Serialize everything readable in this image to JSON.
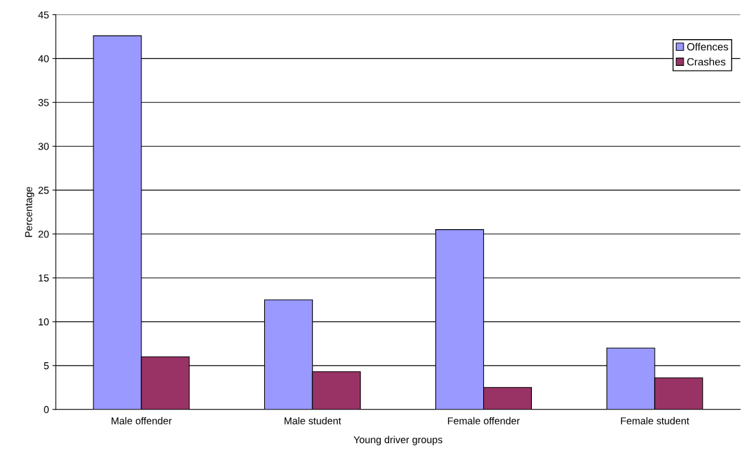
{
  "chart_data": {
    "type": "bar",
    "xlabel": "Young driver groups",
    "ylabel": "Percentage",
    "categories": [
      "Male offender",
      "Male student",
      "Female offender",
      "Female student"
    ],
    "series": [
      {
        "name": "Offences",
        "color": "#9999ff",
        "values": [
          42.6,
          12.5,
          20.5,
          7.0
        ]
      },
      {
        "name": "Crashes",
        "color": "#993366",
        "values": [
          6.0,
          4.3,
          2.5,
          3.6
        ]
      }
    ],
    "ylim": [
      0,
      45
    ],
    "yticks": [
      0,
      5,
      10,
      15,
      20,
      25,
      30,
      35,
      40,
      45
    ],
    "grid": "y",
    "legend": "top right"
  }
}
